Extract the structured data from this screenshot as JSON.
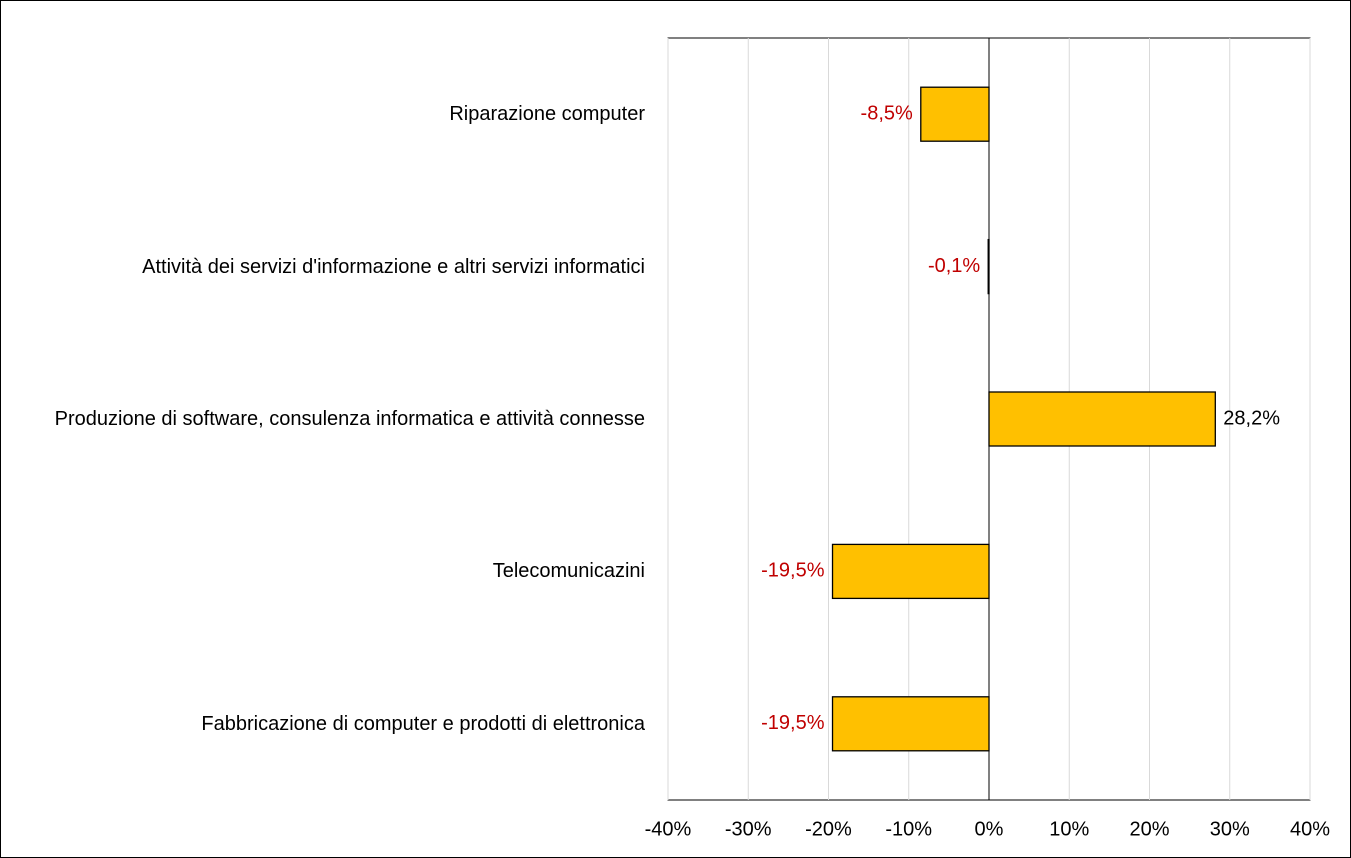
{
  "chart_data": {
    "type": "barh",
    "categories": [
      "Riparazione computer",
      "Attività dei servizi d'informazione e altri servizi informatici",
      "Produzione di software, consulenza informatica e attività connesse",
      "Telecomunicazini",
      "Fabbricazione di computer e prodotti di elettronica"
    ],
    "values": [
      -8.5,
      -0.1,
      28.2,
      -19.5,
      -19.5
    ],
    "value_labels": [
      "-8,5%",
      "-0,1%",
      "28,2%",
      "-19,5%",
      "-19,5%"
    ],
    "color": "#ffc000",
    "negative_label_color": "#c00000",
    "xlim": [
      -40,
      40
    ],
    "xticks": [
      {
        "value": -40,
        "label": "-40%"
      },
      {
        "value": -30,
        "label": "-30%"
      },
      {
        "value": -20,
        "label": "-20%"
      },
      {
        "value": -10,
        "label": "-10%"
      },
      {
        "value": 0,
        "label": "0%"
      },
      {
        "value": 10,
        "label": "10%"
      },
      {
        "value": 20,
        "label": "20%"
      },
      {
        "value": 30,
        "label": "30%"
      },
      {
        "value": 40,
        "label": "40%"
      }
    ],
    "grid": true
  }
}
